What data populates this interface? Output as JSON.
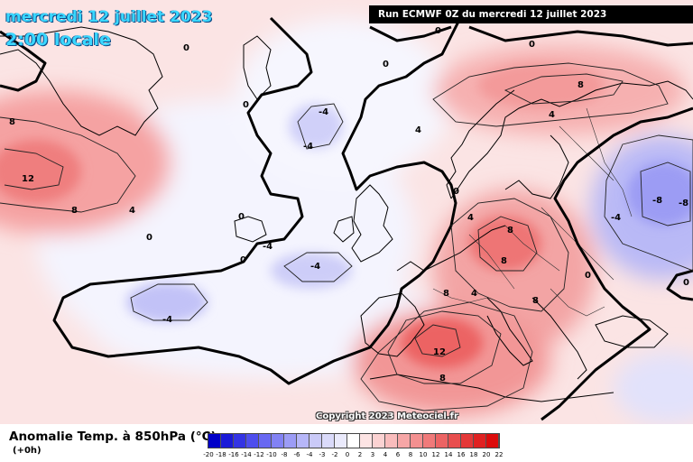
{
  "header": {
    "date": "mercredi 12 juillet 2023",
    "time": "2:00 locale",
    "run": "Run ECMWF 0Z du mercredi 12 juillet 2023"
  },
  "copyright": "Copyright 2023 Meteociel.fr",
  "legend": {
    "title": "Anomalie Temp. à 850hPa (°C)",
    "lead": "(+0h)",
    "ticks": [
      "-20",
      "-18",
      "-16",
      "-14",
      "-12",
      "-10",
      "-8",
      "-6",
      "-4",
      "-3",
      "-2",
      "0",
      "2",
      "3",
      "4",
      "6",
      "8",
      "10",
      "12",
      "14",
      "16",
      "18",
      "20",
      "22"
    ],
    "colors": [
      "#0000c8",
      "#1a1ad8",
      "#3434e4",
      "#4e4eee",
      "#6868f2",
      "#8282f4",
      "#9c9cf6",
      "#b6b6f8",
      "#cacaf8",
      "#dadafa",
      "#eaeafc",
      "#ffffff",
      "#fde4e4",
      "#fbd2d2",
      "#f9bcbc",
      "#f6a6a6",
      "#f39090",
      "#f07a7a",
      "#ec6464",
      "#e84e4e",
      "#e43838",
      "#e02222",
      "#dc0c0c"
    ]
  },
  "contour_labels": [
    {
      "text": "0"
    },
    {
      "text": "0"
    },
    {
      "text": "0"
    },
    {
      "text": "0"
    },
    {
      "text": "0"
    },
    {
      "text": "8"
    },
    {
      "text": "12"
    },
    {
      "text": "8"
    },
    {
      "text": "4"
    },
    {
      "text": "0"
    },
    {
      "text": "-4"
    },
    {
      "text": "-4"
    },
    {
      "text": "4"
    },
    {
      "text": "8"
    },
    {
      "text": "4"
    },
    {
      "text": "0"
    },
    {
      "text": "-4"
    },
    {
      "text": "0"
    },
    {
      "text": "-4"
    },
    {
      "text": "-4"
    },
    {
      "text": "-8"
    },
    {
      "text": "-8"
    },
    {
      "text": "-4"
    },
    {
      "text": "8"
    },
    {
      "text": "4"
    },
    {
      "text": "8"
    },
    {
      "text": "8"
    },
    {
      "text": "4"
    },
    {
      "text": "8"
    },
    {
      "text": "12"
    },
    {
      "text": "8"
    },
    {
      "text": "0"
    },
    {
      "text": "0"
    },
    {
      "text": "0"
    }
  ]
}
